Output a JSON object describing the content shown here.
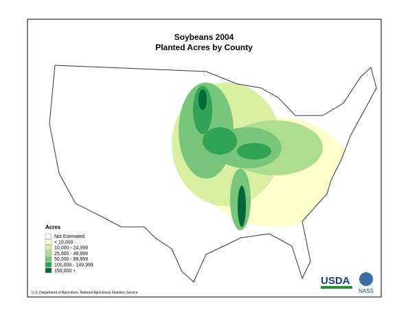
{
  "header": {
    "title": "Soybeans 2004",
    "subtitle": "Planted Acres by County"
  },
  "legend": {
    "title": "Acres",
    "items": [
      {
        "label": "Not Estimated",
        "color": "#ffffff"
      },
      {
        "label": "< 10,000",
        "color": "#ffffcc"
      },
      {
        "label": "10,000 - 24,999",
        "color": "#d9f0a3"
      },
      {
        "label": "25,000 - 49,999",
        "color": "#addd8e"
      },
      {
        "label": "50,000 - 99,999",
        "color": "#78c679"
      },
      {
        "label": "100,000 - 149,999",
        "color": "#31a354"
      },
      {
        "label": "150,000 +",
        "color": "#006837"
      }
    ]
  },
  "source": "U.S. Department of Agriculture, National Agricultural Statistics Service",
  "logos": {
    "usda": "USDA",
    "nass": "NASS"
  }
}
